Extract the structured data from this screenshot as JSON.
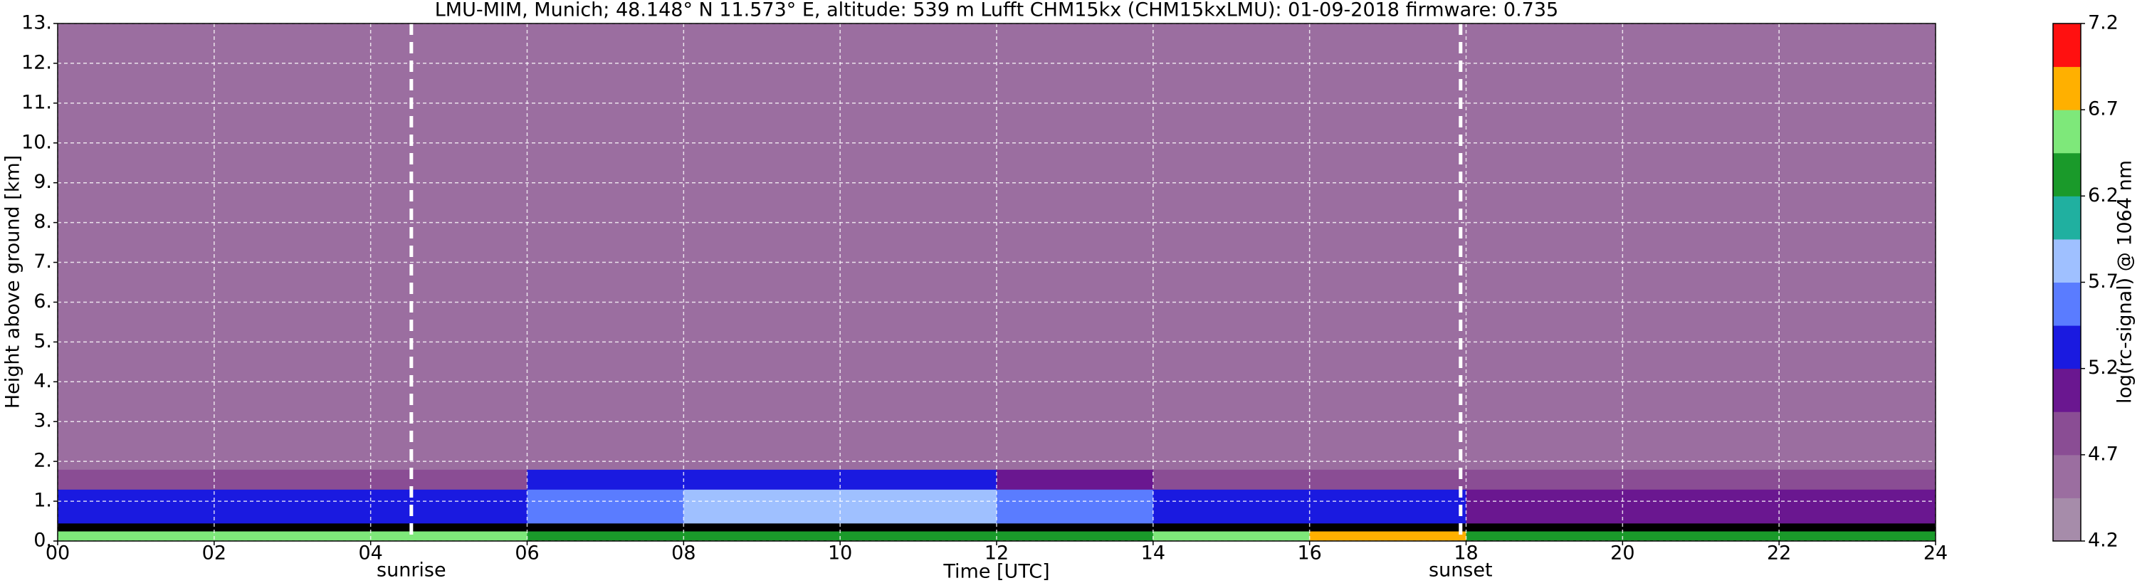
{
  "chart_data": {
    "type": "heatmap",
    "title": "LMU-MIM, Munich; 48.148° N 11.573° E, altitude: 539 m    Lufft CHM15kx (CHM15kxLMU): 01-09-2018    firmware: 0.735",
    "xlabel": "Time [UTC]",
    "ylabel": "Height above ground [km]",
    "xlim": [
      0,
      24
    ],
    "xticks": [
      {
        "value": 0,
        "label": "00"
      },
      {
        "value": 2,
        "label": "02"
      },
      {
        "value": 4,
        "label": "04"
      },
      {
        "value": 6,
        "label": "06"
      },
      {
        "value": 8,
        "label": "08"
      },
      {
        "value": 10,
        "label": "10"
      },
      {
        "value": 12,
        "label": "12"
      },
      {
        "value": 14,
        "label": "14"
      },
      {
        "value": 16,
        "label": "16"
      },
      {
        "value": 18,
        "label": "18"
      },
      {
        "value": 20,
        "label": "20"
      },
      {
        "value": 22,
        "label": "22"
      },
      {
        "value": 24,
        "label": "24"
      }
    ],
    "ylim": [
      0,
      13
    ],
    "yticks": [
      {
        "value": 0,
        "label": "0."
      },
      {
        "value": 1,
        "label": "1."
      },
      {
        "value": 2,
        "label": "2."
      },
      {
        "value": 3,
        "label": "3."
      },
      {
        "value": 4,
        "label": "4."
      },
      {
        "value": 5,
        "label": "5."
      },
      {
        "value": 6,
        "label": "6."
      },
      {
        "value": 7,
        "label": "7."
      },
      {
        "value": 8,
        "label": "8."
      },
      {
        "value": 9,
        "label": "9."
      },
      {
        "value": 10,
        "label": "10."
      },
      {
        "value": 11,
        "label": "11."
      },
      {
        "value": 12,
        "label": "12."
      },
      {
        "value": 13,
        "label": "13."
      }
    ],
    "grid": true,
    "x_bins": [
      0,
      2,
      4,
      6,
      8,
      10,
      12,
      14,
      16,
      18,
      20,
      22,
      24
    ],
    "y_bins": [
      0,
      0.25,
      0.45,
      1.3,
      1.8,
      13
    ],
    "z": [
      [
        6.5,
        6.5,
        6.5,
        6.3,
        6.2,
        6.4,
        6.2,
        6.6,
        6.8,
        6.3,
        6.3,
        6.3
      ],
      [
        4.0,
        4.0,
        4.0,
        4.0,
        4.0,
        4.0,
        4.0,
        4.0,
        4.0,
        4.0,
        4.0,
        4.0
      ],
      [
        5.4,
        5.4,
        5.3,
        5.6,
        5.8,
        5.9,
        5.5,
        5.4,
        5.3,
        5.1,
        5.0,
        5.0
      ],
      [
        4.9,
        4.9,
        4.9,
        5.2,
        5.3,
        5.2,
        5.0,
        4.9,
        4.9,
        4.8,
        4.8,
        4.8
      ],
      [
        4.6,
        4.6,
        4.6,
        4.6,
        4.6,
        4.6,
        4.6,
        4.6,
        4.6,
        4.6,
        4.6,
        4.6
      ]
    ],
    "annotations": [
      {
        "text": "sunrise",
        "x": 4.52
      },
      {
        "text": "sunset",
        "x": 17.93
      }
    ],
    "colorbar": {
      "label": "log(rc-signal) @ 1064 nm",
      "lim": [
        4.2,
        7.2
      ],
      "ticks": [
        4.2,
        4.7,
        5.2,
        5.7,
        6.2,
        6.7,
        7.2
      ],
      "colors": [
        "#a68caa",
        "#9b6ea0",
        "#8a4d94",
        "#6a1790",
        "#1a1ae0",
        "#5a7cff",
        "#9fc0ff",
        "#20b0a0",
        "#1a9a2a",
        "#7ee87a",
        "#ffb000",
        "#ff1010",
        "#f0c8c8",
        "#ffffff"
      ],
      "under_color": "#000000"
    }
  }
}
